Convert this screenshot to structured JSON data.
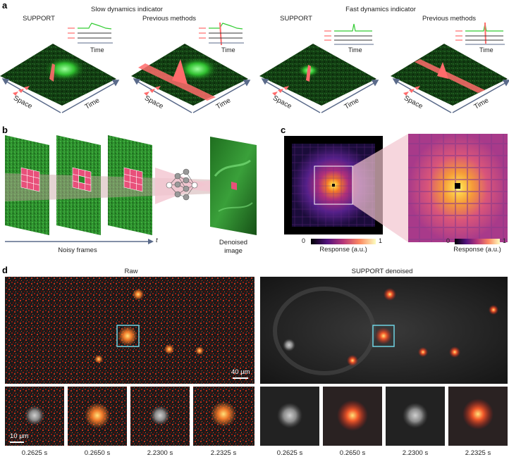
{
  "panels": {
    "a": "a",
    "b": "b",
    "c": "c",
    "d": "d"
  },
  "a": {
    "slow_title": "Slow dynamics indicator",
    "fast_title": "Fast dynamics indicator",
    "col_labels": [
      "SUPPORT",
      "Previous methods",
      "SUPPORT",
      "Previous methods"
    ],
    "time_label": "Time",
    "space_label": "Space"
  },
  "b": {
    "noisy_frames": "Noisy frames",
    "t_label": "t",
    "denoised_line1": "Denoised",
    "denoised_line2": "image"
  },
  "c": {
    "cbar_min": "0",
    "cbar_max": "1",
    "cbar_label": "Response (a.u.)"
  },
  "d": {
    "raw_title": "Raw",
    "denoised_title": "SUPPORT denoised",
    "scale_bar_large": "40 µm",
    "scale_bar_small": "10 µm",
    "raw_times": [
      "0.2625 s",
      "0.2650 s",
      "2.2300 s",
      "2.2325 s"
    ],
    "denoised_times": [
      "0.2625 s",
      "0.2650 s",
      "2.2300 s",
      "2.2325 s"
    ]
  },
  "colors": {
    "signal_green": "#33cc33",
    "highlight_red": "#ff6b6b",
    "roi_pink": "#e8507a",
    "roi_cyan": "#6fd3e3",
    "axis_arrow": "#5a6a8a"
  }
}
